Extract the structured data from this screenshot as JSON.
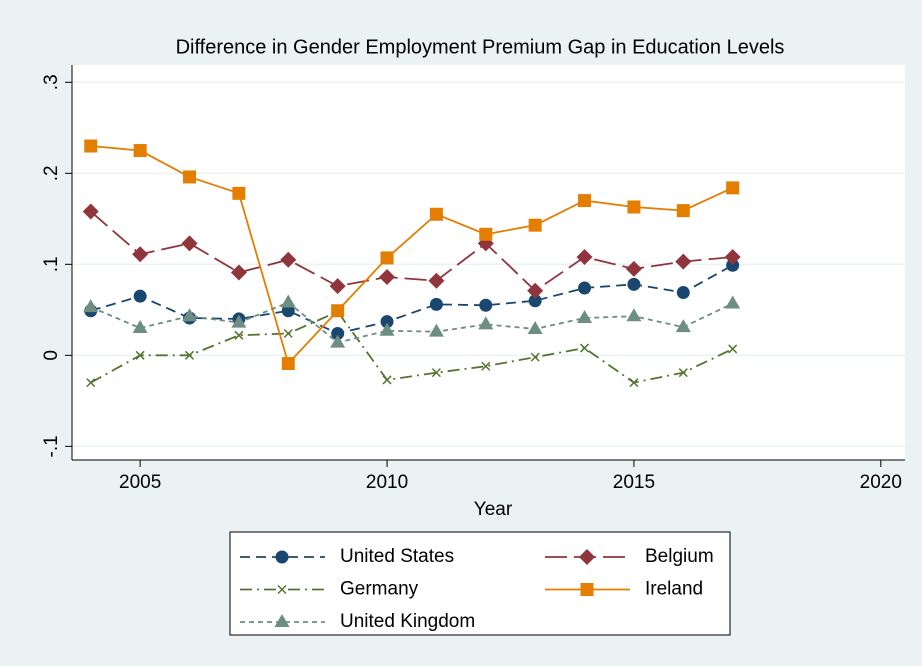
{
  "chart_data": {
    "type": "line",
    "title": "Difference in Gender Employment Premium Gap in Education Levels",
    "x_label": "Year",
    "x": [
      2004,
      2005,
      2006,
      2007,
      2008,
      2009,
      2010,
      2011,
      2012,
      2013,
      2014,
      2015,
      2016,
      2017
    ],
    "xlim": [
      2003.62,
      2020.49
    ],
    "xticks": [
      2005,
      2010,
      2015,
      2020
    ],
    "ylim": [
      -0.115,
      0.319
    ],
    "yticks": [
      {
        "value": -0.1,
        "label": "-.1"
      },
      0,
      {
        "value": 0.1,
        "label": ".1"
      },
      {
        "value": 0.2,
        "label": ".2"
      },
      {
        "value": 0.3,
        "label": ".3"
      }
    ],
    "grid": true,
    "series": [
      {
        "name": "United States",
        "color": "#1a476f",
        "line_style": "dash",
        "marker": "circle",
        "values": [
          0.049,
          0.065,
          0.041,
          0.04,
          0.049,
          0.024,
          0.037,
          0.056,
          0.055,
          0.06,
          0.074,
          0.078,
          0.069,
          0.099
        ]
      },
      {
        "name": "Belgium",
        "color": "#90353b",
        "line_style": "longdash",
        "marker": "diamond",
        "values": [
          0.158,
          0.111,
          0.123,
          0.091,
          0.105,
          0.076,
          0.086,
          0.082,
          0.123,
          0.071,
          0.108,
          0.095,
          0.103,
          0.108
        ]
      },
      {
        "name": "Germany",
        "color": "#55752f",
        "line_style": "dashdot",
        "marker": "x",
        "values": [
          -0.03,
          0,
          0,
          0.022,
          0.024,
          0.048,
          -0.027,
          -0.019,
          -0.012,
          -0.002,
          0.008,
          -0.03,
          -0.019,
          0.007
        ]
      },
      {
        "name": "Ireland",
        "color": "#e37e00",
        "line_style": "solid",
        "marker": "square",
        "values": [
          0.23,
          0.225,
          0.196,
          0.178,
          -0.009,
          0.049,
          0.107,
          0.155,
          0.133,
          0.143,
          0.17,
          0.163,
          0.159,
          0.184
        ]
      },
      {
        "name": "United Kingdom",
        "color": "#6e8e84",
        "line_style": "shortdash",
        "marker": "triangle",
        "values": [
          0.053,
          0.03,
          0.043,
          0.036,
          0.058,
          0.014,
          0.027,
          0.026,
          0.034,
          0.029,
          0.041,
          0.043,
          0.031,
          0.057
        ]
      }
    ]
  }
}
